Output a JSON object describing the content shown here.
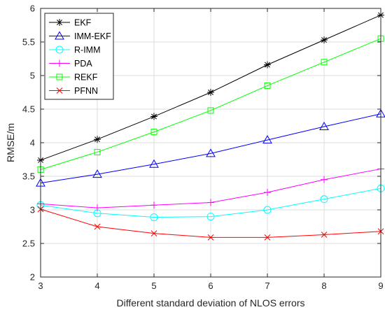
{
  "chart_data": {
    "type": "line",
    "title": "",
    "xlabel": "Different standard deviation of NLOS errors",
    "ylabel": "RMSE/m",
    "xlim": [
      3,
      9
    ],
    "ylim": [
      2,
      6
    ],
    "xticks": [
      3,
      4,
      5,
      6,
      7,
      8,
      9
    ],
    "yticks": [
      2,
      2.5,
      3,
      3.5,
      4,
      4.5,
      5,
      5.5,
      6
    ],
    "ytick_labels": [
      "2",
      "2.5",
      "3",
      "3.5",
      "4",
      "4.5",
      "5",
      "5.5",
      "6"
    ],
    "grid": true,
    "legend_position": "top-left",
    "x": [
      3,
      4,
      5,
      6,
      7,
      8,
      9
    ],
    "series": [
      {
        "name": "EKF",
        "values": [
          3.74,
          4.05,
          4.39,
          4.75,
          5.16,
          5.53,
          5.9
        ],
        "color": "#000000",
        "marker": "star"
      },
      {
        "name": "IMM-EKF",
        "values": [
          3.4,
          3.53,
          3.68,
          3.84,
          4.04,
          4.24,
          4.43
        ],
        "color": "#0000ff",
        "marker": "triangle"
      },
      {
        "name": "R-IMM",
        "values": [
          3.07,
          2.95,
          2.89,
          2.9,
          3.0,
          3.16,
          3.32
        ],
        "color": "#00ffff",
        "marker": "circle"
      },
      {
        "name": "PDA",
        "values": [
          3.09,
          3.03,
          3.07,
          3.11,
          3.26,
          3.45,
          3.61
        ],
        "color": "#ff00ff",
        "marker": "plus"
      },
      {
        "name": "REKF",
        "values": [
          3.6,
          3.86,
          4.16,
          4.48,
          4.85,
          5.2,
          5.55
        ],
        "color": "#00ff00",
        "marker": "square"
      },
      {
        "name": "PFNN",
        "values": [
          3.01,
          2.75,
          2.65,
          2.59,
          2.59,
          2.63,
          2.68
        ],
        "color": "#ff0000",
        "marker": "x"
      }
    ]
  }
}
